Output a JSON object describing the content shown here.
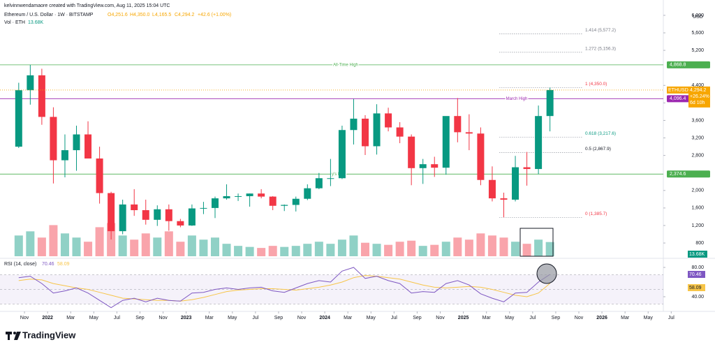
{
  "header": {
    "credit": "kelvinnwendamaore created with TradingView.com, Aug 11, 2025 15:04 UTC",
    "symbol": "Ethereum / U.S. Dollar · 1W · BITSTAMP",
    "ohlc": [
      "O4,251.6",
      "H4,350.0",
      "L4,165.5",
      "C4,294.2",
      "+42.6 (+1.00%)"
    ]
  },
  "footer": {
    "brand": "TradingView"
  },
  "chart_data": {
    "type": "candlestick",
    "title": "Ethereum / U.S. Dollar · 1W · BITSTAMP",
    "currency": "USD",
    "x": [
      "2021-10",
      "2021-11",
      "2021-12",
      "2022-01",
      "2022-02",
      "2022-03",
      "2022-04",
      "2022-05",
      "2022-06",
      "2022-07",
      "2022-08",
      "2022-09",
      "2022-10",
      "2022-11",
      "2022-12",
      "2023-01",
      "2023-02",
      "2023-03",
      "2023-04",
      "2023-05",
      "2023-06",
      "2023-07",
      "2023-08",
      "2023-09",
      "2023-10",
      "2023-11",
      "2023-12",
      "2024-01",
      "2024-02",
      "2024-03",
      "2024-04",
      "2024-05",
      "2024-06",
      "2024-07",
      "2024-08",
      "2024-09",
      "2024-10",
      "2024-11",
      "2024-12",
      "2025-01",
      "2025-02",
      "2025-03",
      "2025-04",
      "2025-05",
      "2025-06",
      "2025-07",
      "2025-08"
    ],
    "open": [
      3000,
      4290,
      4630,
      3680,
      2690,
      2920,
      3280,
      2730,
      1940,
      1070,
      1680,
      1550,
      1330,
      1570,
      1300,
      1200,
      1590,
      1600,
      1820,
      1870,
      1870,
      1930,
      1860,
      1650,
      1670,
      1810,
      2050,
      2280,
      2280,
      3380,
      3640,
      3010,
      3760,
      3440,
      3230,
      2510,
      2600,
      2520,
      3700,
      3330,
      3300,
      2240,
      1820,
      1790,
      2530,
      2490,
      3700
    ],
    "high": [
      4460,
      4870,
      4780,
      3900,
      3280,
      3480,
      3580,
      3000,
      1970,
      1790,
      2030,
      1790,
      1660,
      1680,
      1350,
      1680,
      1740,
      1860,
      2140,
      1930,
      1930,
      2030,
      1870,
      1680,
      1860,
      2140,
      2400,
      2720,
      3480,
      4090,
      3720,
      3970,
      3890,
      3560,
      3280,
      2720,
      2770,
      3680,
      4110,
      3740,
      3440,
      2550,
      1950,
      2790,
      2880,
      3940,
      4350
    ],
    "low": [
      2970,
      3960,
      3500,
      2160,
      2300,
      2450,
      2770,
      1700,
      880,
      1000,
      1420,
      1220,
      1190,
      1080,
      1160,
      1190,
      1460,
      1370,
      1790,
      1760,
      1630,
      1820,
      1550,
      1530,
      1520,
      1780,
      2030,
      2100,
      2260,
      3050,
      2810,
      2820,
      3350,
      3080,
      2120,
      2150,
      2310,
      2360,
      3100,
      2920,
      2120,
      1750,
      1385.7,
      1750,
      2110,
      2370,
      3350
    ],
    "close": [
      4290,
      4630,
      3680,
      2690,
      2920,
      3280,
      2730,
      1940,
      1070,
      1680,
      1550,
      1330,
      1570,
      1300,
      1200,
      1590,
      1600,
      1820,
      1870,
      1870,
      1930,
      1860,
      1650,
      1670,
      1810,
      2050,
      2280,
      2280,
      3380,
      3640,
      3010,
      3760,
      3440,
      3230,
      2510,
      2600,
      2520,
      3700,
      3330,
      3300,
      2240,
      1820,
      1790,
      2530,
      2490,
      3700,
      4294.2
    ],
    "up_color": "#089981",
    "down_color": "#f23645",
    "xlim": [
      "2021-09",
      "2026-08"
    ],
    "xticks": [
      {
        "value": "2021-11",
        "label": "Nov"
      },
      {
        "value": "2022-01",
        "label": "2022"
      },
      {
        "value": "2022-03",
        "label": "Mar"
      },
      {
        "value": "2022-05",
        "label": "May"
      },
      {
        "value": "2022-07",
        "label": "Jul"
      },
      {
        "value": "2022-09",
        "label": "Sep"
      },
      {
        "value": "2022-11",
        "label": "Nov"
      },
      {
        "value": "2023-01",
        "label": "2023"
      },
      {
        "value": "2023-03",
        "label": "Mar"
      },
      {
        "value": "2023-05",
        "label": "May"
      },
      {
        "value": "2023-07",
        "label": "Jul"
      },
      {
        "value": "2023-09",
        "label": "Sep"
      },
      {
        "value": "2023-11",
        "label": "Nov"
      },
      {
        "value": "2024-01",
        "label": "2024"
      },
      {
        "value": "2024-03",
        "label": "Mar"
      },
      {
        "value": "2024-05",
        "label": "May"
      },
      {
        "value": "2024-07",
        "label": "Jul"
      },
      {
        "value": "2024-09",
        "label": "Sep"
      },
      {
        "value": "2024-11",
        "label": "Nov"
      },
      {
        "value": "2025-01",
        "label": "2025"
      },
      {
        "value": "2025-03",
        "label": "Mar"
      },
      {
        "value": "2025-05",
        "label": "May"
      },
      {
        "value": "2025-07",
        "label": "Jul"
      },
      {
        "value": "2025-09",
        "label": "Sep"
      },
      {
        "value": "2025-11",
        "label": "Nov"
      },
      {
        "value": "2026-01",
        "label": "2026"
      },
      {
        "value": "2026-03",
        "label": "Mar"
      },
      {
        "value": "2026-05",
        "label": "May"
      },
      {
        "value": "2026-07",
        "label": "Jul"
      }
    ],
    "ylim": [
      450,
      6350
    ],
    "yticks": [
      {
        "value": 800,
        "label": "800"
      },
      {
        "value": 1200,
        "label": "1,200"
      },
      {
        "value": 1600,
        "label": "1,600"
      },
      {
        "value": 2000,
        "label": "2,000"
      },
      {
        "value": 2800,
        "label": "2,800"
      },
      {
        "value": 3200,
        "label": "3,200"
      },
      {
        "value": 3600,
        "label": "3,600"
      },
      {
        "value": 4000,
        "label": "4,000"
      },
      {
        "value": 4400,
        "label": "4,400"
      },
      {
        "value": 5200,
        "label": "5,200"
      },
      {
        "value": 5600,
        "label": "5,600"
      },
      {
        "value": 6000,
        "label": "6,000"
      }
    ],
    "last_price": {
      "value": 4294.2,
      "label": "4,294.2",
      "symbol": "ETHUSD",
      "change": "+26.24%",
      "countdown": "6d 10h",
      "color": "#f7a600"
    },
    "levels": [
      {
        "name": "All-Time High",
        "value": 4868.8,
        "label": "4,868.8",
        "color": "#4caf50"
      },
      {
        "name": "March High",
        "value": 4096.4,
        "label": "4,096.4",
        "color": "#9c27b0"
      },
      {
        "name": "y's Low",
        "value": 2374.6,
        "label": "2,374.6",
        "color": "#4caf50"
      }
    ],
    "fib": [
      {
        "label": "1.414 (5,577.2)",
        "value": 5577.2,
        "color": "#787b86"
      },
      {
        "label": "1.272 (5,156.3)",
        "value": 5156.3,
        "color": "#787b86"
      },
      {
        "label": "1 (4,350.0)",
        "value": 4350.0,
        "color": "#f23645"
      },
      {
        "label": "0.618 (3,217.6)",
        "value": 3217.6,
        "color": "#089981"
      },
      {
        "label": "0.5 (2,867.9)",
        "value": 2867.9,
        "color": "#131722"
      },
      {
        "label": "0 (1,385.7)",
        "value": 1385.7,
        "color": "#f23645"
      }
    ],
    "volume": {
      "name": "Vol · ETH",
      "values": [
        20,
        24,
        18,
        30,
        22,
        18,
        14,
        28,
        32,
        20,
        16,
        22,
        18,
        24,
        14,
        20,
        16,
        18,
        12,
        10,
        9,
        8,
        10,
        9,
        10,
        12,
        14,
        12,
        16,
        20,
        13,
        12,
        11,
        14,
        15,
        10,
        11,
        14,
        18,
        16,
        22,
        20,
        18,
        14,
        12,
        16,
        13.68
      ],
      "value_labels": [
        null,
        null,
        null,
        null,
        null,
        null,
        null,
        null,
        null,
        null,
        null,
        null,
        null,
        null,
        null,
        null,
        null,
        null,
        null,
        null,
        null,
        null,
        null,
        null,
        null,
        null,
        null,
        null,
        null,
        null,
        null,
        null,
        null,
        null,
        null,
        null,
        null,
        null,
        null,
        null,
        null,
        null,
        null,
        null,
        null,
        null,
        "13.68K"
      ],
      "ylim": [
        0,
        35
      ],
      "color": "#089981"
    },
    "rsi": {
      "name": "RSI (14, close)",
      "values": [
        66,
        68,
        58,
        45,
        48,
        52,
        45,
        35,
        25,
        35,
        38,
        33,
        38,
        35,
        34,
        45,
        46,
        50,
        52,
        50,
        52,
        53,
        48,
        46,
        52,
        58,
        62,
        60,
        75,
        80,
        65,
        68,
        62,
        58,
        45,
        47,
        46,
        58,
        62,
        56,
        44,
        38,
        33,
        45,
        46,
        60,
        70.46
      ],
      "ma": [
        62,
        64,
        63,
        58,
        55,
        52,
        50,
        46,
        42,
        38,
        37,
        36,
        35,
        35,
        34,
        36,
        39,
        43,
        47,
        49,
        50,
        51,
        51,
        50,
        49,
        51,
        53,
        56,
        60,
        66,
        69,
        68,
        66,
        64,
        60,
        56,
        53,
        52,
        53,
        54,
        53,
        50,
        46,
        42,
        40,
        45,
        58.09
      ],
      "color": "#7e57c2",
      "ma_color": "#f7c548",
      "ylim": [
        25.7,
        90.5
      ],
      "yticks": [
        {
          "value": 40,
          "label": "40.00"
        },
        {
          "value": 80,
          "label": "80.00"
        }
      ],
      "bands": [
        30,
        50,
        70
      ]
    }
  }
}
